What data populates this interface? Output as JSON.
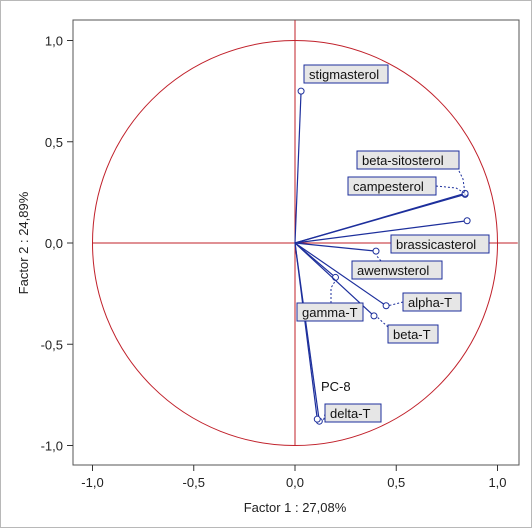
{
  "chart_data": {
    "type": "scatter",
    "subtype": "correlation-circle",
    "xlabel": "Factor 1 : 27,08%",
    "ylabel": "Factor 2 : 24,89%",
    "xlim": [
      -1.1,
      1.1
    ],
    "ylim": [
      -1.1,
      1.1
    ],
    "xticks": [
      "-1,0",
      "-0,5",
      "0,0",
      "0,5",
      "1,0"
    ],
    "yticks": [
      "1,0",
      "0,5",
      "0,0",
      "-0,5",
      "-1,0"
    ],
    "grid": false,
    "circle_radius": 1.0,
    "colors": {
      "circle": "#c0202a",
      "vectors": "#1d2f9c",
      "label_border": "#1d2f9c",
      "label_bg": "#e6e6e6",
      "leader": "#1d2f9c"
    },
    "points": [
      {
        "name": "stigmasterol",
        "x": 0.03,
        "y": 0.75
      },
      {
        "name": "beta-sitosterol",
        "x": 0.84,
        "y": 0.24
      },
      {
        "name": "campesterol",
        "x": 0.84,
        "y": 0.245
      },
      {
        "name": "brassicasterol",
        "x": 0.85,
        "y": 0.11
      },
      {
        "name": "awenwsterol",
        "x": 0.4,
        "y": -0.04
      },
      {
        "name": "alpha-T",
        "x": 0.45,
        "y": -0.31
      },
      {
        "name": "gamma-T",
        "x": 0.2,
        "y": -0.17
      },
      {
        "name": "beta-T",
        "x": 0.39,
        "y": -0.36
      },
      {
        "name": "delta-T",
        "x": 0.12,
        "y": -0.88
      },
      {
        "name": "PC-8",
        "x": 0.11,
        "y": -0.87
      }
    ]
  }
}
